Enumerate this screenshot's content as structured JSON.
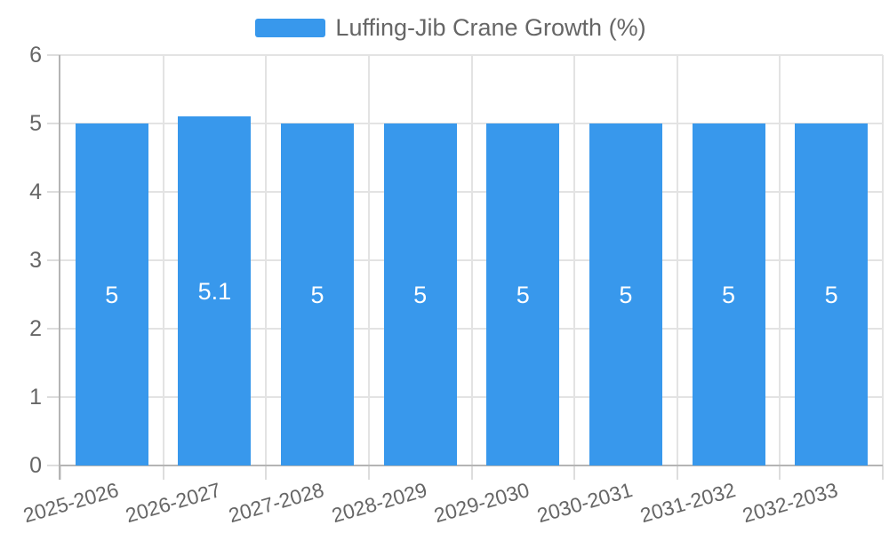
{
  "legend": {
    "label": "Luffing-Jib Crane Growth (%)"
  },
  "chart_data": {
    "type": "bar",
    "title": "Luffing-Jib Crane Growth (%)",
    "series_name": "Luffing-Jib Crane Growth (%)",
    "categories": [
      "2025-2026",
      "2026-2027",
      "2027-2028",
      "2028-2029",
      "2029-2030",
      "2030-2031",
      "2031-2032",
      "2032-2033"
    ],
    "values": [
      5,
      5.1,
      5,
      5,
      5,
      5,
      5,
      5
    ],
    "bar_labels": [
      "5",
      "5.1",
      "5",
      "5",
      "5",
      "5",
      "5",
      "5"
    ],
    "xlabel": "",
    "ylabel": "",
    "ylim": [
      0,
      6
    ],
    "yticks": [
      0,
      1,
      2,
      3,
      4,
      5,
      6
    ],
    "grid": true,
    "legend_position": "top",
    "bar_color": "#3898EC",
    "bar_label_color": "#FFFFFF",
    "axis_text_color": "#666666",
    "grid_color": "#E3E3E3",
    "tick_color": "#DDDDDD",
    "axis_line_color": "#B4B4B4",
    "background_color": "#FFFFFF"
  }
}
